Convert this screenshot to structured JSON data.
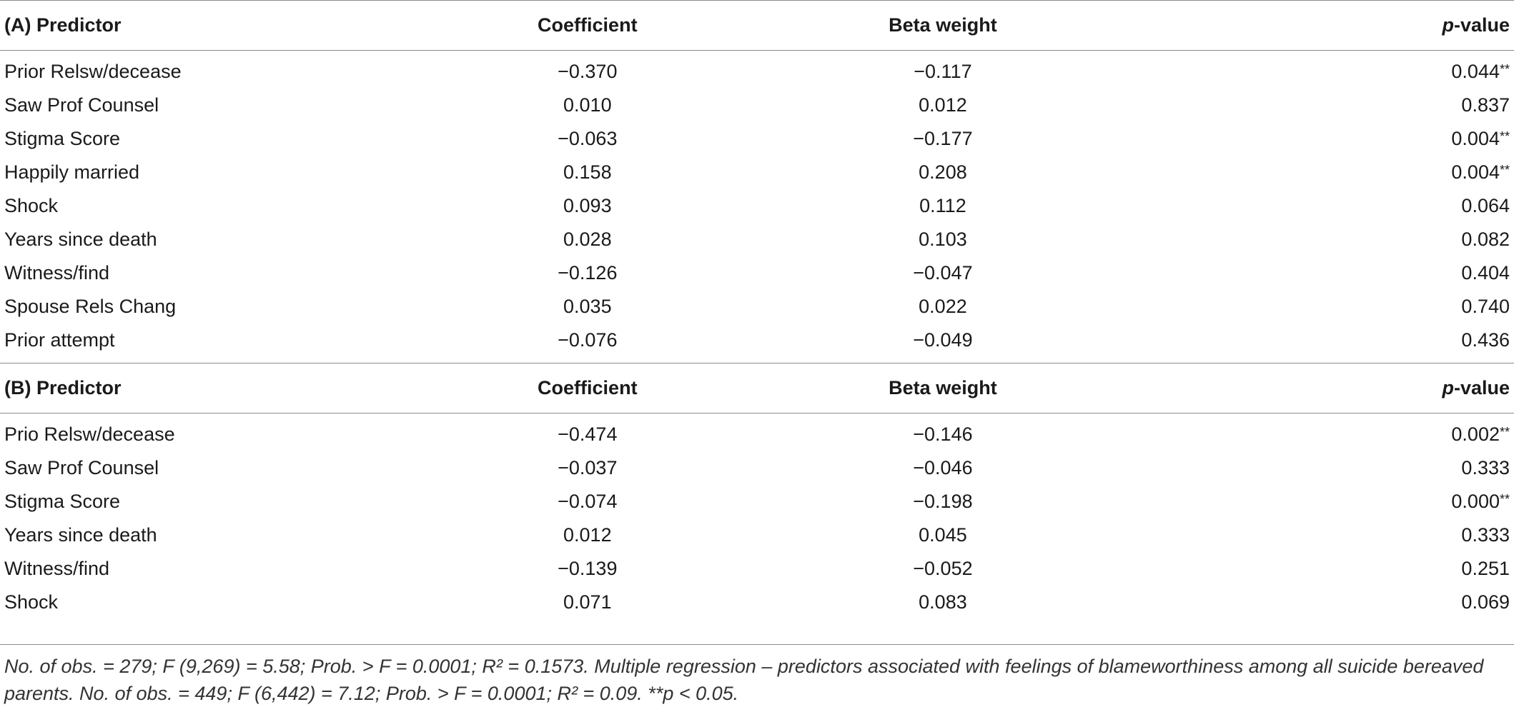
{
  "section_a": {
    "headers": [
      "(A) Predictor",
      "Coefficient",
      "Beta weight",
      "p-value"
    ],
    "p_label_italic": "p",
    "p_label_rest": "-value",
    "rows": [
      {
        "predictor": "Prior Relsw/decease",
        "coef": "−0.370",
        "beta": "−0.117",
        "p": "0.044",
        "star": "**"
      },
      {
        "predictor": "Saw Prof Counsel",
        "coef": "0.010",
        "beta": "0.012",
        "p": "0.837",
        "star": ""
      },
      {
        "predictor": "Stigma Score",
        "coef": "−0.063",
        "beta": "−0.177",
        "p": "0.004",
        "star": "**"
      },
      {
        "predictor": "Happily married",
        "coef": "0.158",
        "beta": "0.208",
        "p": "0.004",
        "star": "**"
      },
      {
        "predictor": "Shock",
        "coef": "0.093",
        "beta": "0.112",
        "p": "0.064",
        "star": ""
      },
      {
        "predictor": "Years since death",
        "coef": "0.028",
        "beta": "0.103",
        "p": "0.082",
        "star": ""
      },
      {
        "predictor": "Witness/find",
        "coef": "−0.126",
        "beta": "−0.047",
        "p": "0.404",
        "star": ""
      },
      {
        "predictor": "Spouse Rels Chang",
        "coef": "0.035",
        "beta": "0.022",
        "p": "0.740",
        "star": ""
      },
      {
        "predictor": "Prior attempt",
        "coef": "−0.076",
        "beta": "−0.049",
        "p": "0.436",
        "star": ""
      }
    ]
  },
  "section_b": {
    "headers": [
      "(B) Predictor",
      "Coefficient",
      "Beta weight",
      "p-value"
    ],
    "p_label_italic": "p",
    "p_label_rest": "-value",
    "rows": [
      {
        "predictor": "Prio Relsw/decease",
        "coef": "−0.474",
        "beta": "−0.146",
        "p": "0.002",
        "star": "**"
      },
      {
        "predictor": "Saw Prof Counsel",
        "coef": "−0.037",
        "beta": "−0.046",
        "p": "0.333",
        "star": ""
      },
      {
        "predictor": "Stigma Score",
        "coef": "−0.074",
        "beta": "−0.198",
        "p": "0.000",
        "star": "**"
      },
      {
        "predictor": "Years since death",
        "coef": "0.012",
        "beta": "0.045",
        "p": "0.333",
        "star": ""
      },
      {
        "predictor": "Witness/find",
        "coef": "−0.139",
        "beta": "−0.052",
        "p": "0.251",
        "star": ""
      },
      {
        "predictor": "Shock",
        "coef": "0.071",
        "beta": "0.083",
        "p": "0.069",
        "star": ""
      }
    ]
  },
  "footnote": "No. of obs. = 279; F (9,269) = 5.58; Prob. > F = 0.0001; R² = 0.1573. Multiple regression – predictors associated with feelings of blameworthiness among all suicide bereaved parents. No. of obs. = 449; F (6,442) = 7.12; Prob. > F = 0.0001; R² = 0.09. **p < 0.05."
}
